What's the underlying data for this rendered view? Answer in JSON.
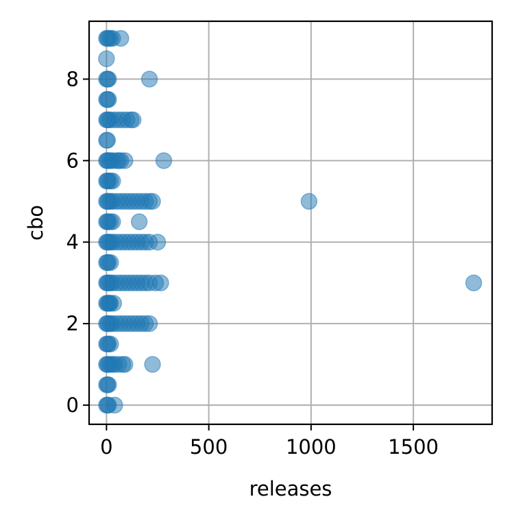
{
  "chart_data": {
    "type": "scatter",
    "title": "",
    "xlabel": "releases",
    "ylabel": "cbo",
    "xlim": [
      -85,
      1885
    ],
    "ylim": [
      -0.47,
      9.42
    ],
    "xticks": [
      0,
      500,
      1000,
      1500
    ],
    "yticks": [
      0,
      2,
      4,
      6,
      8
    ],
    "grid": true,
    "marker_color": "#1f77b4",
    "marker_alpha": 0.5,
    "x": [
      0,
      5,
      10,
      40,
      0,
      5,
      10,
      0,
      5,
      10,
      20,
      30,
      40,
      60,
      80,
      90,
      225,
      0,
      5,
      10,
      20,
      0,
      5,
      10,
      20,
      30,
      50,
      70,
      90,
      110,
      130,
      150,
      170,
      190,
      210,
      0,
      5,
      10,
      15,
      20,
      35,
      0,
      5,
      10,
      20,
      30,
      50,
      70,
      90,
      110,
      130,
      150,
      170,
      190,
      210,
      240,
      265,
      1795,
      0,
      5,
      10,
      20,
      0,
      5,
      10,
      20,
      30,
      50,
      70,
      90,
      110,
      130,
      150,
      170,
      190,
      210,
      250,
      0,
      5,
      10,
      20,
      30,
      160,
      0,
      5,
      10,
      20,
      30,
      50,
      70,
      90,
      110,
      130,
      150,
      170,
      190,
      210,
      225,
      990,
      0,
      5,
      10,
      20,
      30,
      0,
      5,
      10,
      20,
      30,
      50,
      60,
      70,
      90,
      280,
      0,
      5,
      0,
      5,
      10,
      20,
      40,
      60,
      80,
      100,
      120,
      130,
      0,
      5,
      10,
      0,
      5,
      10,
      210,
      0,
      0,
      5,
      10,
      20,
      30,
      70
    ],
    "y": [
      0,
      0,
      0,
      0,
      0.5,
      0.5,
      0.5,
      1,
      1,
      1,
      1,
      1,
      1,
      1,
      1,
      1,
      1,
      1.5,
      1.5,
      1.5,
      1.5,
      2,
      2,
      2,
      2,
      2,
      2,
      2,
      2,
      2,
      2,
      2,
      2,
      2,
      2,
      2.5,
      2.5,
      2.5,
      2.5,
      2.5,
      2.5,
      3,
      3,
      3,
      3,
      3,
      3,
      3,
      3,
      3,
      3,
      3,
      3,
      3,
      3,
      3,
      3,
      3,
      3.5,
      3.5,
      3.5,
      3.5,
      4,
      4,
      4,
      4,
      4,
      4,
      4,
      4,
      4,
      4,
      4,
      4,
      4,
      4,
      4,
      4.5,
      4.5,
      4.5,
      4.5,
      4.5,
      4.5,
      5,
      5,
      5,
      5,
      5,
      5,
      5,
      5,
      5,
      5,
      5,
      5,
      5,
      5,
      5,
      5,
      5.5,
      5.5,
      5.5,
      5.5,
      5.5,
      6,
      6,
      6,
      6,
      6,
      6,
      6,
      6,
      6,
      6,
      6.5,
      6.5,
      7,
      7,
      7,
      7,
      7,
      7,
      7,
      7,
      7,
      7,
      7.5,
      7.5,
      7.5,
      8,
      8,
      8,
      8,
      8.5,
      9,
      9,
      9,
      9,
      9,
      9
    ]
  }
}
